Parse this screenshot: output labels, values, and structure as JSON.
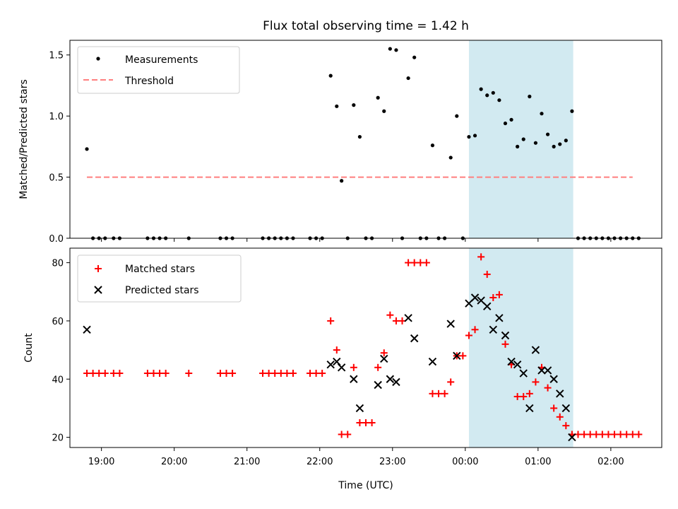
{
  "title": "Flux total observing time = 1.42 h",
  "colors": {
    "measurement": "#000000",
    "threshold": "#ff7f7f",
    "matched": "#ff0000",
    "predicted": "#000000",
    "highlight": "#add8e6"
  },
  "chart_data": [
    {
      "type": "scatter",
      "panel": "top",
      "ylabel": "Matched/Predicted stars",
      "xlabel": "",
      "ylim": [
        0,
        1.62
      ],
      "xlim": [
        "18:34",
        "02:42"
      ],
      "yticks": [
        "0.0",
        "0.5",
        "1.0",
        "1.5"
      ],
      "legend_position": "upper-left",
      "highlight_span": [
        "00:03",
        "01:29"
      ],
      "series": [
        {
          "name": "Measurements",
          "marker": "dot",
          "points": [
            [
              "18:48",
              0.73
            ],
            [
              "18:53",
              0
            ],
            [
              "18:58",
              0
            ],
            [
              "19:03",
              0
            ],
            [
              "19:10",
              0
            ],
            [
              "19:15",
              0
            ],
            [
              "19:38",
              0
            ],
            [
              "19:43",
              0
            ],
            [
              "19:48",
              0
            ],
            [
              "19:53",
              0
            ],
            [
              "20:12",
              0
            ],
            [
              "20:38",
              0
            ],
            [
              "20:43",
              0
            ],
            [
              "20:48",
              0
            ],
            [
              "21:13",
              0
            ],
            [
              "21:18",
              0
            ],
            [
              "21:23",
              0
            ],
            [
              "21:28",
              0
            ],
            [
              "21:33",
              0
            ],
            [
              "21:38",
              0
            ],
            [
              "21:52",
              0
            ],
            [
              "21:57",
              0
            ],
            [
              "22:02",
              0
            ],
            [
              "22:09",
              1.33
            ],
            [
              "22:14",
              1.08
            ],
            [
              "22:18",
              0.47
            ],
            [
              "22:23",
              0
            ],
            [
              "22:28",
              1.09
            ],
            [
              "22:33",
              0.83
            ],
            [
              "22:38",
              0
            ],
            [
              "22:43",
              0
            ],
            [
              "22:48",
              1.15
            ],
            [
              "22:53",
              1.04
            ],
            [
              "22:58",
              1.55
            ],
            [
              "23:03",
              1.54
            ],
            [
              "23:08",
              0
            ],
            [
              "23:13",
              1.31
            ],
            [
              "23:18",
              1.48
            ],
            [
              "23:23",
              0
            ],
            [
              "23:28",
              0
            ],
            [
              "23:33",
              0.76
            ],
            [
              "23:38",
              0
            ],
            [
              "23:43",
              0
            ],
            [
              "23:48",
              0.66
            ],
            [
              "23:53",
              1.0
            ],
            [
              "23:58",
              0
            ],
            [
              "00:03",
              0.83
            ],
            [
              "00:08",
              0.84
            ],
            [
              "00:13",
              1.22
            ],
            [
              "00:18",
              1.17
            ],
            [
              "00:23",
              1.19
            ],
            [
              "00:28",
              1.13
            ],
            [
              "00:33",
              0.94
            ],
            [
              "00:38",
              0.97
            ],
            [
              "00:43",
              0.75
            ],
            [
              "00:48",
              0.81
            ],
            [
              "00:53",
              1.16
            ],
            [
              "00:58",
              0.78
            ],
            [
              "01:03",
              1.02
            ],
            [
              "01:08",
              0.85
            ],
            [
              "01:13",
              0.75
            ],
            [
              "01:18",
              0.77
            ],
            [
              "01:23",
              0.8
            ],
            [
              "01:28",
              1.04
            ],
            [
              "01:33",
              0
            ],
            [
              "01:38",
              0
            ],
            [
              "01:43",
              0
            ],
            [
              "01:48",
              0
            ],
            [
              "01:53",
              0
            ],
            [
              "01:58",
              0
            ],
            [
              "02:03",
              0
            ],
            [
              "02:08",
              0
            ],
            [
              "02:13",
              0
            ],
            [
              "02:18",
              0
            ],
            [
              "02:23",
              0
            ]
          ]
        },
        {
          "name": "Threshold",
          "marker": "dashed-line",
          "x": [
            "18:48",
            "02:18"
          ],
          "y": [
            0.5,
            0.5
          ]
        }
      ]
    },
    {
      "type": "scatter",
      "panel": "bottom",
      "ylabel": "Count",
      "xlabel": "Time (UTC)",
      "ylim": [
        16.5,
        85
      ],
      "xlim": [
        "18:34",
        "02:42"
      ],
      "yticks": [
        "20",
        "40",
        "60",
        "80"
      ],
      "xticks": [
        "19:00",
        "20:00",
        "21:00",
        "22:00",
        "23:00",
        "00:00",
        "01:00",
        "02:00"
      ],
      "legend_position": "upper-left",
      "highlight_span": [
        "00:03",
        "01:29"
      ],
      "series": [
        {
          "name": "Matched stars",
          "marker": "plus",
          "points": [
            [
              "18:48",
              42
            ],
            [
              "18:53",
              42
            ],
            [
              "18:58",
              42
            ],
            [
              "19:03",
              42
            ],
            [
              "19:10",
              42
            ],
            [
              "19:15",
              42
            ],
            [
              "19:38",
              42
            ],
            [
              "19:43",
              42
            ],
            [
              "19:48",
              42
            ],
            [
              "19:53",
              42
            ],
            [
              "20:12",
              42
            ],
            [
              "20:38",
              42
            ],
            [
              "20:43",
              42
            ],
            [
              "20:48",
              42
            ],
            [
              "21:13",
              42
            ],
            [
              "21:18",
              42
            ],
            [
              "21:23",
              42
            ],
            [
              "21:28",
              42
            ],
            [
              "21:33",
              42
            ],
            [
              "21:38",
              42
            ],
            [
              "21:52",
              42
            ],
            [
              "21:57",
              42
            ],
            [
              "22:02",
              42
            ],
            [
              "22:09",
              60
            ],
            [
              "22:14",
              50
            ],
            [
              "22:18",
              21
            ],
            [
              "22:23",
              21
            ],
            [
              "22:28",
              44
            ],
            [
              "22:33",
              25
            ],
            [
              "22:38",
              25
            ],
            [
              "22:43",
              25
            ],
            [
              "22:48",
              44
            ],
            [
              "22:53",
              49
            ],
            [
              "22:58",
              62
            ],
            [
              "23:03",
              60
            ],
            [
              "23:08",
              60
            ],
            [
              "23:13",
              80
            ],
            [
              "23:18",
              80
            ],
            [
              "23:23",
              80
            ],
            [
              "23:28",
              80
            ],
            [
              "23:33",
              35
            ],
            [
              "23:38",
              35
            ],
            [
              "23:43",
              35
            ],
            [
              "23:48",
              39
            ],
            [
              "23:53",
              48
            ],
            [
              "23:58",
              48
            ],
            [
              "00:03",
              55
            ],
            [
              "00:08",
              57
            ],
            [
              "00:13",
              82
            ],
            [
              "00:18",
              76
            ],
            [
              "00:23",
              68
            ],
            [
              "00:28",
              69
            ],
            [
              "00:33",
              52
            ],
            [
              "00:38",
              45
            ],
            [
              "00:43",
              34
            ],
            [
              "00:48",
              34
            ],
            [
              "00:53",
              35
            ],
            [
              "00:58",
              39
            ],
            [
              "01:03",
              44
            ],
            [
              "01:08",
              37
            ],
            [
              "01:13",
              30
            ],
            [
              "01:18",
              27
            ],
            [
              "01:23",
              24
            ],
            [
              "01:28",
              21
            ],
            [
              "01:33",
              21
            ],
            [
              "01:38",
              21
            ],
            [
              "01:43",
              21
            ],
            [
              "01:48",
              21
            ],
            [
              "01:53",
              21
            ],
            [
              "01:58",
              21
            ],
            [
              "02:03",
              21
            ],
            [
              "02:08",
              21
            ],
            [
              "02:13",
              21
            ],
            [
              "02:18",
              21
            ],
            [
              "02:23",
              21
            ]
          ]
        },
        {
          "name": "Predicted stars",
          "marker": "x",
          "points": [
            [
              "18:48",
              57
            ],
            [
              "22:09",
              45
            ],
            [
              "22:14",
              46
            ],
            [
              "22:18",
              44
            ],
            [
              "22:28",
              40
            ],
            [
              "22:33",
              30
            ],
            [
              "22:48",
              38
            ],
            [
              "22:53",
              47
            ],
            [
              "22:58",
              40
            ],
            [
              "23:03",
              39
            ],
            [
              "23:13",
              61
            ],
            [
              "23:18",
              54
            ],
            [
              "23:33",
              46
            ],
            [
              "23:48",
              59
            ],
            [
              "23:53",
              48
            ],
            [
              "00:03",
              66
            ],
            [
              "00:08",
              68
            ],
            [
              "00:13",
              67
            ],
            [
              "00:18",
              65
            ],
            [
              "00:23",
              57
            ],
            [
              "00:28",
              61
            ],
            [
              "00:33",
              55
            ],
            [
              "00:38",
              46
            ],
            [
              "00:43",
              45
            ],
            [
              "00:48",
              42
            ],
            [
              "00:53",
              30
            ],
            [
              "00:58",
              50
            ],
            [
              "01:03",
              43
            ],
            [
              "01:08",
              43
            ],
            [
              "01:13",
              40
            ],
            [
              "01:18",
              35
            ],
            [
              "01:23",
              30
            ],
            [
              "01:28",
              20
            ]
          ]
        }
      ]
    }
  ]
}
